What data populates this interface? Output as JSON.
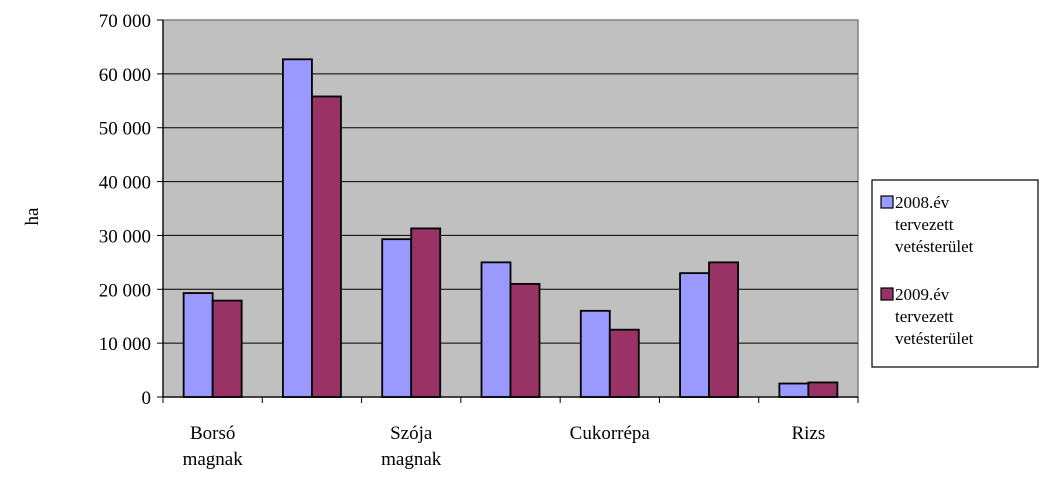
{
  "chart_data": {
    "type": "bar",
    "ylabel": "ha",
    "ylim": [
      0,
      70000
    ],
    "ytick_step": 10000,
    "ytick_labels": [
      "0",
      "10 000",
      "20 000",
      "30 000",
      "40 000",
      "50 000",
      "60 000",
      "70 000"
    ],
    "grid": true,
    "plot_background": "#C0C0C0",
    "categories": [
      {
        "label": [
          "Borsó",
          "magnak"
        ]
      },
      {
        "label": []
      },
      {
        "label": [
          "Szója",
          "magnak"
        ]
      },
      {
        "label": []
      },
      {
        "label": [
          "Cukorrépa"
        ]
      },
      {
        "label": []
      },
      {
        "label": [
          "Rizs"
        ]
      }
    ],
    "series": [
      {
        "name": [
          "2008.év",
          "tervezett",
          "vetésterület"
        ],
        "color": "#9999FF",
        "values": [
          19300,
          62700,
          29300,
          25000,
          16000,
          23000,
          2500
        ]
      },
      {
        "name": [
          "2009.év",
          "tervezett",
          "vetésterület"
        ],
        "color": "#993366",
        "values": [
          17900,
          55800,
          31300,
          21000,
          12500,
          25000,
          2700
        ]
      }
    ],
    "legend_position": "right"
  }
}
